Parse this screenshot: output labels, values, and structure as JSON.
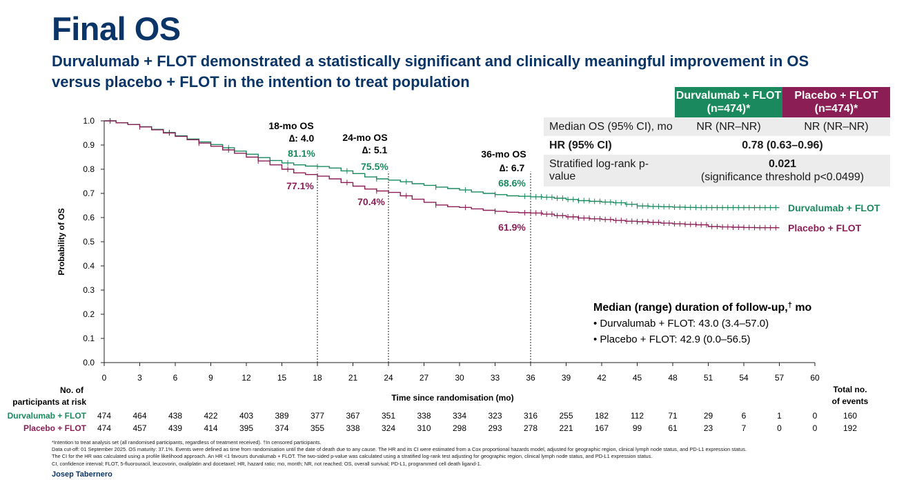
{
  "title": "Final OS",
  "subtitle": "Durvalumab + FLOT demonstrated a statistically significant and clinically meaningful improvement in OS versus placebo + FLOT in the intention to treat population",
  "colors": {
    "durva": "#1a8a5e",
    "placebo": "#8a1e55",
    "title": "#0a3566"
  },
  "stats_table": {
    "col1": "Durvalumab + FLOT (n=474)*",
    "col2": "Placebo + FLOT (n=474)*",
    "median_label": "Median OS (95% CI), mo",
    "median_durva": "NR (NR–NR)",
    "median_placebo": "NR (NR–NR)",
    "hr_label": "HR (95% CI)",
    "hr_value": "0.78 (0.63–0.96)",
    "p_label": "Stratified log-rank p-value",
    "p_value": "0.021",
    "p_note": "(significance threshold p<0.0499)"
  },
  "chart_data": {
    "type": "line",
    "title": "",
    "xlabel": "Time since randomisation (mo)",
    "ylabel": "Probability of OS",
    "xlim": [
      0,
      60
    ],
    "ylim": [
      0,
      1.0
    ],
    "x_ticks": [
      "0",
      "3",
      "6",
      "9",
      "12",
      "15",
      "18",
      "21",
      "24",
      "27",
      "30",
      "33",
      "36",
      "39",
      "42",
      "45",
      "48",
      "51",
      "54",
      "57",
      "60"
    ],
    "y_ticks": [
      "0.0",
      "0.1",
      "0.2",
      "0.3",
      "0.4",
      "0.5",
      "0.6",
      "0.7",
      "0.8",
      "0.9",
      "1.0"
    ],
    "series": [
      {
        "name": "Durvalumab + FLOT",
        "x": [
          0,
          1,
          2,
          3,
          4,
          5,
          6,
          7,
          8,
          9,
          10,
          11,
          12,
          13,
          14,
          15,
          16,
          17,
          18,
          19,
          20,
          21,
          22,
          23,
          24,
          25,
          26,
          27,
          28,
          29,
          30,
          31,
          32,
          33,
          34,
          35,
          36,
          37,
          38,
          39,
          40,
          41,
          42,
          43,
          44,
          45,
          46,
          47,
          48,
          49,
          50,
          51,
          52,
          53,
          54,
          55,
          56,
          57
        ],
        "values": [
          1.0,
          0.992,
          0.985,
          0.976,
          0.965,
          0.952,
          0.938,
          0.925,
          0.913,
          0.902,
          0.889,
          0.875,
          0.862,
          0.848,
          0.836,
          0.826,
          0.818,
          0.813,
          0.811,
          0.805,
          0.793,
          0.782,
          0.768,
          0.76,
          0.755,
          0.748,
          0.74,
          0.733,
          0.726,
          0.72,
          0.714,
          0.706,
          0.7,
          0.695,
          0.69,
          0.688,
          0.686,
          0.684,
          0.68,
          0.675,
          0.67,
          0.667,
          0.664,
          0.661,
          0.655,
          0.648,
          0.646,
          0.645,
          0.643,
          0.642,
          0.641,
          0.641,
          0.641,
          0.641,
          0.641,
          0.641,
          0.641,
          0.641
        ],
        "end_label": "Durvalumab + FLOT"
      },
      {
        "name": "Placebo + FLOT",
        "x": [
          0,
          1,
          2,
          3,
          4,
          5,
          6,
          7,
          8,
          9,
          10,
          11,
          12,
          13,
          14,
          15,
          16,
          17,
          18,
          19,
          20,
          21,
          22,
          23,
          24,
          25,
          26,
          27,
          28,
          29,
          30,
          31,
          32,
          33,
          34,
          35,
          36,
          37,
          38,
          39,
          40,
          41,
          42,
          43,
          44,
          45,
          46,
          47,
          48,
          49,
          50,
          51,
          52,
          53,
          54,
          55,
          56,
          57
        ],
        "values": [
          1.0,
          0.992,
          0.985,
          0.975,
          0.963,
          0.95,
          0.936,
          0.922,
          0.908,
          0.895,
          0.88,
          0.866,
          0.85,
          0.834,
          0.818,
          0.8,
          0.785,
          0.778,
          0.771,
          0.76,
          0.745,
          0.73,
          0.718,
          0.71,
          0.704,
          0.69,
          0.676,
          0.663,
          0.652,
          0.645,
          0.642,
          0.636,
          0.63,
          0.626,
          0.622,
          0.62,
          0.619,
          0.614,
          0.608,
          0.603,
          0.598,
          0.595,
          0.592,
          0.588,
          0.585,
          0.583,
          0.58,
          0.577,
          0.574,
          0.572,
          0.57,
          0.563,
          0.561,
          0.56,
          0.559,
          0.558,
          0.558,
          0.558
        ],
        "end_label": "Placebo + FLOT"
      }
    ],
    "milestones": [
      {
        "month": 18,
        "label": "18-mo OS",
        "delta": "∆: 4.0",
        "durva": "81.1%",
        "placebo": "77.1%"
      },
      {
        "month": 24,
        "label": "24-mo OS",
        "delta": "∆: 5.1",
        "durva": "75.5%",
        "placebo": "70.4%"
      },
      {
        "month": 36,
        "label": "36-mo OS",
        "delta": "∆: 6.7",
        "durva": "68.6%",
        "placebo": "61.9%"
      }
    ],
    "follow_up": {
      "heading": "Median (range) duration of follow-up,",
      "dagger": "†",
      "unit": " mo",
      "items": [
        "• Durvalumab + FLOT: 43.0 (3.4–57.0)",
        "• Placebo + FLOT: 42.9 (0.0–56.5)"
      ]
    },
    "risk_table": {
      "heading_line1": "No. of",
      "heading_line2": "participants at risk",
      "total_line1": "Total no.",
      "total_line2": "of events",
      "rows": [
        {
          "name": "Durvalumab + FLOT",
          "values": [
            "474",
            "464",
            "438",
            "422",
            "403",
            "389",
            "377",
            "367",
            "351",
            "338",
            "334",
            "323",
            "316",
            "255",
            "182",
            "112",
            "71",
            "29",
            "6",
            "1",
            "0"
          ],
          "total": "160"
        },
        {
          "name": "Placebo + FLOT",
          "values": [
            "474",
            "457",
            "439",
            "414",
            "395",
            "374",
            "355",
            "338",
            "324",
            "310",
            "298",
            "293",
            "278",
            "221",
            "167",
            "99",
            "61",
            "23",
            "7",
            "0",
            "0"
          ],
          "total": "192"
        }
      ]
    }
  },
  "footnotes": [
    "*Intention to treat analysis set (all randomised participants, regardless of treatment received). †In censored participants.",
    "Data cut-off: 01 September 2025. OS maturity: 37.1%. Events were defined as time from randomisation until the date of death due to any cause. The HR and its CI were estimated from a Cox proportional hazards model, adjusted for geographic region, clinical lymph node status, and PD-L1 expression status.",
    "The CI for the HR was calculated using a profile likelihood approach. An HR <1 favours durvalumab + FLOT. The two-sided p-value was calculated using a stratified log-rank test adjusting for geographic region, clinical lymph node status, and PD-L1 expression status.",
    "CI, confidence interval; FLOT, 5-fluorouracil, leucovorin, oxaliplatin and docetaxel; HR, hazard ratio; mo, month; NR, not reached; OS, overall survival; PD-L1, programmed cell death ligand-1."
  ],
  "author": "Josep Tabernero"
}
